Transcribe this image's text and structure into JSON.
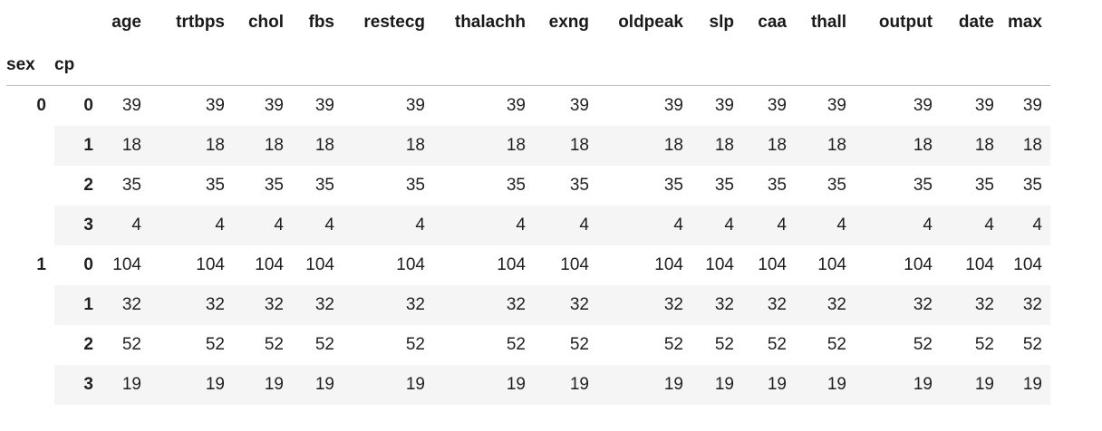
{
  "table": {
    "columns": [
      "age",
      "trtbps",
      "chol",
      "fbs",
      "restecg",
      "thalachh",
      "exng",
      "oldpeak",
      "slp",
      "caa",
      "thall",
      "output",
      "date",
      "max"
    ],
    "index_names": [
      "sex",
      "cp"
    ],
    "rows": [
      {
        "sex": "0",
        "cp": "0",
        "values": [
          "39",
          "39",
          "39",
          "39",
          "39",
          "39",
          "39",
          "39",
          "39",
          "39",
          "39",
          "39",
          "39",
          "39"
        ]
      },
      {
        "sex": "",
        "cp": "1",
        "values": [
          "18",
          "18",
          "18",
          "18",
          "18",
          "18",
          "18",
          "18",
          "18",
          "18",
          "18",
          "18",
          "18",
          "18"
        ]
      },
      {
        "sex": "",
        "cp": "2",
        "values": [
          "35",
          "35",
          "35",
          "35",
          "35",
          "35",
          "35",
          "35",
          "35",
          "35",
          "35",
          "35",
          "35",
          "35"
        ]
      },
      {
        "sex": "",
        "cp": "3",
        "values": [
          "4",
          "4",
          "4",
          "4",
          "4",
          "4",
          "4",
          "4",
          "4",
          "4",
          "4",
          "4",
          "4",
          "4"
        ]
      },
      {
        "sex": "1",
        "cp": "0",
        "values": [
          "104",
          "104",
          "104",
          "104",
          "104",
          "104",
          "104",
          "104",
          "104",
          "104",
          "104",
          "104",
          "104",
          "104"
        ]
      },
      {
        "sex": "",
        "cp": "1",
        "values": [
          "32",
          "32",
          "32",
          "32",
          "32",
          "32",
          "32",
          "32",
          "32",
          "32",
          "32",
          "32",
          "32",
          "32"
        ]
      },
      {
        "sex": "",
        "cp": "2",
        "values": [
          "52",
          "52",
          "52",
          "52",
          "52",
          "52",
          "52",
          "52",
          "52",
          "52",
          "52",
          "52",
          "52",
          "52"
        ]
      },
      {
        "sex": "",
        "cp": "3",
        "values": [
          "19",
          "19",
          "19",
          "19",
          "19",
          "19",
          "19",
          "19",
          "19",
          "19",
          "19",
          "19",
          "19",
          "19"
        ]
      }
    ]
  }
}
